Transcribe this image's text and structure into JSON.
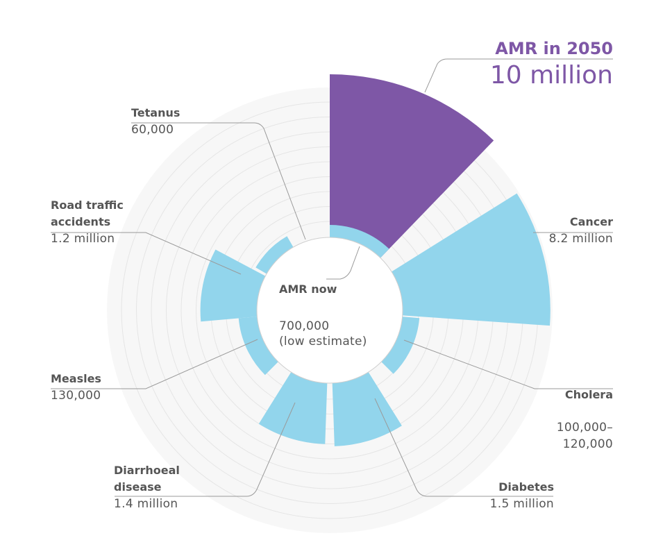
{
  "chart_data": {
    "type": "polar-bar",
    "categories": [
      "AMR in 2050",
      "Cancer",
      "Cholera",
      "Diabetes",
      "Diarrhoeal disease",
      "Measles",
      "Road traffic accidents",
      "Tetanus"
    ],
    "values": [
      10000000,
      8200000,
      110000,
      1500000,
      1400000,
      130000,
      1200000,
      60000
    ],
    "value_labels": [
      "10 million",
      "8.2 million",
      "100,000–\n120,000",
      "1.5 million",
      "1.4 million",
      "130,000",
      "1.2 million",
      "60,000"
    ],
    "highlight": "AMR in 2050",
    "center_label": {
      "name": "AMR now",
      "value": "700,000\n(low estimate)"
    },
    "colors": {
      "highlight": "#7e57a6",
      "bars": "#92d5ec",
      "rings": "#e5e5e5",
      "leaders": "#9a9a9a"
    }
  }
}
